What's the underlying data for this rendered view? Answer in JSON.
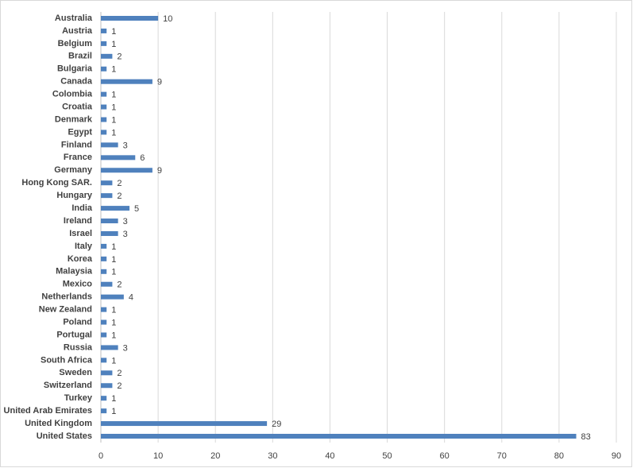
{
  "chart_data": {
    "type": "bar",
    "horizontal": true,
    "categories": [
      "Australia",
      "Austria",
      "Belgium",
      "Brazil",
      "Bulgaria",
      "Canada",
      "Colombia",
      "Croatia",
      "Denmark",
      "Egypt",
      "Finland",
      "France",
      "Germany",
      "Hong Kong SAR.",
      "Hungary",
      "India",
      "Ireland",
      "Israel",
      "Italy",
      "Korea",
      "Malaysia",
      "Mexico",
      "Netherlands",
      "New Zealand",
      "Poland",
      "Portugal",
      "Russia",
      "South Africa",
      "Sweden",
      "Switzerland",
      "Turkey",
      "United Arab Emirates",
      "United Kingdom",
      "United States"
    ],
    "values": [
      10,
      1,
      1,
      2,
      1,
      9,
      1,
      1,
      1,
      1,
      3,
      6,
      9,
      2,
      2,
      5,
      3,
      3,
      1,
      1,
      1,
      2,
      4,
      1,
      1,
      1,
      3,
      1,
      2,
      2,
      1,
      1,
      29,
      83
    ],
    "color": "#4f81bd",
    "xlim": [
      0,
      90
    ],
    "xticks": [
      0,
      10,
      20,
      30,
      40,
      50,
      60,
      70,
      80,
      90
    ],
    "grid": true
  }
}
